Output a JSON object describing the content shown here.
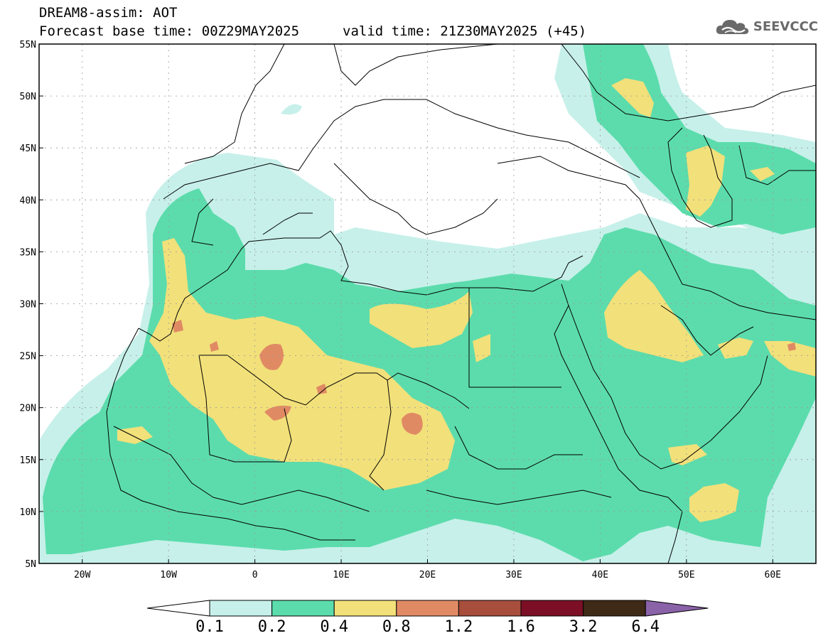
{
  "header": {
    "line1": "DREAM8-assim: AOT",
    "line2": "Forecast base time: 00Z29MAY2025",
    "line2b": "valid time: 21Z30MAY2025 (+45)",
    "logo_text": "SEEVCCC"
  },
  "map": {
    "lon_range": [
      -25,
      65
    ],
    "lat_range": [
      5,
      55
    ],
    "lat_ticks": [
      {
        "value": 55,
        "label": "55N"
      },
      {
        "value": 50,
        "label": "50N"
      },
      {
        "value": 45,
        "label": "45N"
      },
      {
        "value": 40,
        "label": "40N"
      },
      {
        "value": 35,
        "label": "35N"
      },
      {
        "value": 30,
        "label": "30N"
      },
      {
        "value": 25,
        "label": "25N"
      },
      {
        "value": 20,
        "label": "20N"
      },
      {
        "value": 15,
        "label": "15N"
      },
      {
        "value": 10,
        "label": "10N"
      },
      {
        "value": 5,
        "label": "5N"
      }
    ],
    "lon_ticks": [
      {
        "value": -20,
        "label": "20W"
      },
      {
        "value": -10,
        "label": "10W"
      },
      {
        "value": 0,
        "label": "0"
      },
      {
        "value": 10,
        "label": "10E"
      },
      {
        "value": 20,
        "label": "20E"
      },
      {
        "value": 30,
        "label": "30E"
      },
      {
        "value": 40,
        "label": "40E"
      },
      {
        "value": 50,
        "label": "50E"
      },
      {
        "value": 60,
        "label": "60E"
      }
    ]
  },
  "colorbar": {
    "labels": [
      "0.1",
      "0.2",
      "0.4",
      "0.8",
      "1.2",
      "1.6",
      "3.2",
      "6.4"
    ],
    "colors": [
      "#c7f0ea",
      "#5cdcac",
      "#f2e07a",
      "#e08a64",
      "#a84e3c",
      "#7c0f25",
      "#3e2a16",
      "#8a62a8"
    ],
    "under_color": "#ffffff"
  },
  "legend": {
    "levels": {
      "c1": "#c7f0ea",
      "c2": "#5cdcac",
      "c3": "#f2e07a",
      "c4": "#e08a64"
    }
  }
}
